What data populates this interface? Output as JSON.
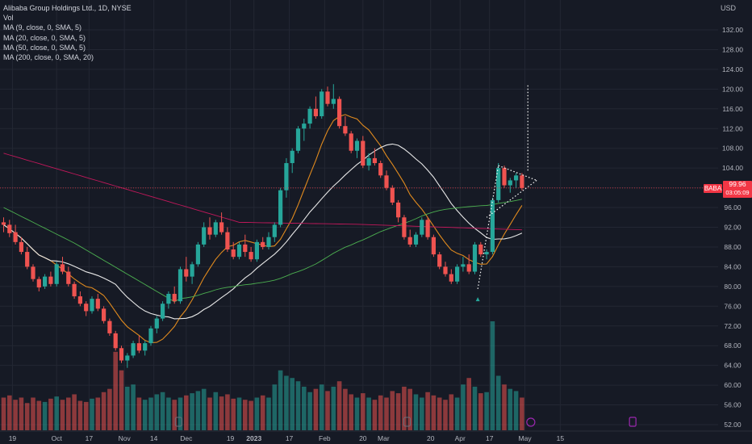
{
  "legend": {
    "title": "Alibaba Group Holdings Ltd., 1D, NYSE",
    "vol": "Vol",
    "ma": [
      "MA (9, close, 0, SMA, 5)",
      "MA (20, close, 0, SMA, 5)",
      "MA (50, close, 0, SMA, 5)",
      "MA (200, close, 0, SMA, 20)"
    ]
  },
  "currency": "USD",
  "last_price": {
    "symbol": "BABA",
    "value": "99.96",
    "countdown": "03:05:09"
  },
  "chart_data": {
    "type": "candlestick",
    "yaxis_ticks": [
      "52.00",
      "56.00",
      "60.00",
      "64.00",
      "68.00",
      "72.00",
      "76.00",
      "80.00",
      "84.00",
      "88.00",
      "92.00",
      "96.00",
      "100.00",
      "104.00",
      "108.00",
      "112.00",
      "116.00",
      "120.00",
      "124.00",
      "128.00",
      "132.00"
    ],
    "ylim": [
      50.5,
      134.5
    ],
    "xaxis_ticks": [
      {
        "label": "19",
        "i": 1.5
      },
      {
        "label": "Oct",
        "i": 9
      },
      {
        "label": "17",
        "i": 14.5
      },
      {
        "label": "Nov",
        "i": 20.5
      },
      {
        "label": "14",
        "i": 25.5
      },
      {
        "label": "Dec",
        "i": 31
      },
      {
        "label": "19",
        "i": 38.5
      },
      {
        "label": "2023",
        "i": 42.5
      },
      {
        "label": "17",
        "i": 48.5
      },
      {
        "label": "Feb",
        "i": 54.5
      },
      {
        "label": "20",
        "i": 61
      },
      {
        "label": "Mar",
        "i": 64.5
      },
      {
        "label": "20",
        "i": 72.5
      },
      {
        "label": "Apr",
        "i": 77.5
      },
      {
        "label": "17",
        "i": 82.5
      },
      {
        "label": "May",
        "i": 88.5
      },
      {
        "label": "15",
        "i": 94.5
      }
    ],
    "candles": [
      [
        93,
        94,
        91,
        92.5
      ],
      [
        92.5,
        93.5,
        90,
        90.8
      ],
      [
        91,
        92.5,
        88.5,
        89
      ],
      [
        89,
        90,
        86.5,
        87
      ],
      [
        87,
        88,
        83.5,
        84
      ],
      [
        84,
        84.5,
        81,
        81.5
      ],
      [
        81.5,
        82,
        79,
        79.8
      ],
      [
        80,
        82.5,
        79.5,
        82
      ],
      [
        82,
        83,
        80,
        80.5
      ],
      [
        80.5,
        85,
        80,
        84.5
      ],
      [
        84.5,
        86,
        82.5,
        83
      ],
      [
        83,
        84,
        80,
        80.5
      ],
      [
        80.5,
        81,
        77.5,
        78
      ],
      [
        78,
        79,
        76,
        76.5
      ],
      [
        76.5,
        77,
        74,
        75
      ],
      [
        75,
        78,
        74.5,
        77.5
      ],
      [
        77.5,
        78.5,
        75,
        75.5
      ],
      [
        75.5,
        76,
        72.5,
        73
      ],
      [
        73,
        73.5,
        70,
        70.5
      ],
      [
        70.5,
        71,
        67,
        67.5
      ],
      [
        67.5,
        68,
        64.5,
        65
      ],
      [
        65,
        66.5,
        63.5,
        66
      ],
      [
        66,
        69,
        65.5,
        68.5
      ],
      [
        68.5,
        70,
        66.5,
        67
      ],
      [
        67,
        69,
        66,
        68.5
      ],
      [
        68.5,
        72,
        68,
        71.5
      ],
      [
        71.5,
        74,
        70.5,
        73.5
      ],
      [
        73.5,
        77,
        73,
        76.5
      ],
      [
        76.5,
        79,
        75.5,
        78.5
      ],
      [
        78.5,
        80,
        76.5,
        77
      ],
      [
        77,
        84,
        76.5,
        83.5
      ],
      [
        83.5,
        86,
        81,
        82
      ],
      [
        82,
        85,
        80.5,
        84.5
      ],
      [
        84.5,
        89,
        84,
        88.5
      ],
      [
        88.5,
        93,
        88,
        92
      ],
      [
        92,
        94,
        89.5,
        90.5
      ],
      [
        90.5,
        93.5,
        90,
        93
      ],
      [
        93,
        95,
        90.5,
        91
      ],
      [
        91,
        92,
        87,
        87.5
      ],
      [
        87.5,
        89,
        85.5,
        86
      ],
      [
        86,
        89,
        85.5,
        88.5
      ],
      [
        88.5,
        90.5,
        86,
        87
      ],
      [
        87,
        88,
        85,
        85.5
      ],
      [
        85.5,
        89.5,
        85,
        89
      ],
      [
        89,
        90,
        87.5,
        88
      ],
      [
        88,
        91,
        87.5,
        90
      ],
      [
        90,
        93,
        89,
        92.5
      ],
      [
        92.5,
        100,
        92,
        99.5
      ],
      [
        99.5,
        106,
        98,
        105
      ],
      [
        105,
        108,
        103,
        107.5
      ],
      [
        107.5,
        112.5,
        107,
        112
      ],
      [
        112,
        114,
        109.5,
        113
      ],
      [
        113,
        116.5,
        112,
        116
      ],
      [
        116,
        118.5,
        114,
        114.5
      ],
      [
        114.5,
        120,
        114,
        119.5
      ],
      [
        119.5,
        120.5,
        116.5,
        117
      ],
      [
        117,
        121,
        116,
        118
      ],
      [
        118,
        118.5,
        112,
        112.5
      ],
      [
        112.5,
        114.5,
        110.5,
        111
      ],
      [
        111,
        111.5,
        107,
        107.5
      ],
      [
        107.5,
        110,
        106,
        109.5
      ],
      [
        109.5,
        110.5,
        104,
        104.5
      ],
      [
        104.5,
        107,
        103.5,
        106
      ],
      [
        106,
        108,
        104.5,
        105
      ],
      [
        105,
        105.5,
        102,
        102.5
      ],
      [
        102.5,
        103.5,
        99.5,
        100
      ],
      [
        100,
        100.5,
        96.5,
        97
      ],
      [
        97,
        97.5,
        93,
        94
      ],
      [
        94,
        94.5,
        89.5,
        90
      ],
      [
        90,
        91.5,
        88,
        88.5
      ],
      [
        88.5,
        91,
        88,
        90.5
      ],
      [
        90.5,
        94,
        90,
        93.5
      ],
      [
        93.5,
        94,
        89.5,
        90
      ],
      [
        90,
        90.5,
        86,
        86.5
      ],
      [
        86.5,
        87,
        83.5,
        84
      ],
      [
        84,
        85,
        82,
        82.5
      ],
      [
        82.5,
        83.5,
        80.5,
        81
      ],
      [
        81,
        84.5,
        80.5,
        84
      ],
      [
        84,
        86,
        83,
        84.5
      ],
      [
        84.5,
        86.5,
        82.5,
        83
      ],
      [
        83,
        89,
        82.5,
        88.5
      ],
      [
        88.5,
        89,
        86,
        86.5
      ],
      [
        86.5,
        87.5,
        85.5,
        87
      ],
      [
        87,
        98,
        86.5,
        97.5
      ],
      [
        97.5,
        105,
        97,
        104
      ],
      [
        104,
        104.5,
        100,
        100.5
      ],
      [
        100.5,
        102,
        99,
        101.5
      ],
      [
        101.5,
        103,
        100,
        102.5
      ],
      [
        102.5,
        103,
        99.5,
        99.96
      ]
    ],
    "volume_scale": [
      0,
      1.0
    ],
    "volumes": [
      0.3,
      0.32,
      0.28,
      0.3,
      0.25,
      0.3,
      0.27,
      0.26,
      0.29,
      0.31,
      0.28,
      0.3,
      0.33,
      0.27,
      0.26,
      0.29,
      0.3,
      0.35,
      0.38,
      0.72,
      0.55,
      0.4,
      0.42,
      0.3,
      0.28,
      0.3,
      0.33,
      0.35,
      0.3,
      0.28,
      0.3,
      0.32,
      0.34,
      0.36,
      0.38,
      0.3,
      0.35,
      0.31,
      0.33,
      0.29,
      0.3,
      0.28,
      0.27,
      0.3,
      0.32,
      0.3,
      0.42,
      0.55,
      0.5,
      0.48,
      0.45,
      0.4,
      0.35,
      0.38,
      0.42,
      0.36,
      0.4,
      0.45,
      0.38,
      0.33,
      0.3,
      0.34,
      0.3,
      0.28,
      0.32,
      0.3,
      0.36,
      0.34,
      0.4,
      0.38,
      0.33,
      0.3,
      0.35,
      0.32,
      0.3,
      0.28,
      0.33,
      0.3,
      0.42,
      0.48,
      0.4,
      0.34,
      0.35,
      1.0,
      0.5,
      0.42,
      0.38,
      0.36,
      0.3
    ]
  }
}
